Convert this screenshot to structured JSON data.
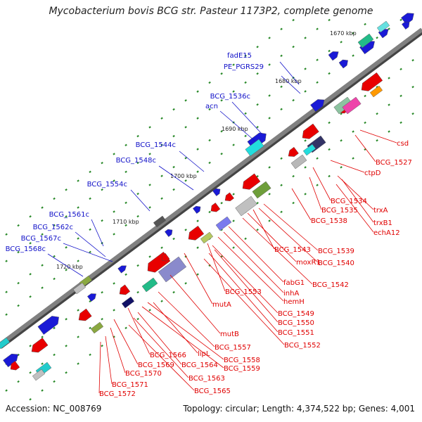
{
  "title": "Mycobacterium bovis BCG str. Pasteur 1173P2, complete genome",
  "accession": "Accession: NC_008769",
  "topology": "Topology: circular; Length: 4,374,522 bp; Genes: 4,001",
  "colors": {
    "forward_label": "#1010c8",
    "reverse_label": "#e00000",
    "backbone": "#808080",
    "tick": "#2a8a2a"
  },
  "scale_labels": [
    "1670 kbp",
    "1680 kbp",
    "1690 kbp",
    "1700 kbp",
    "1710 kbp",
    "1720 kbp"
  ],
  "forward_labels": [
    "fadE15",
    "PE_PGRS29",
    "BCG_1536c",
    "acn",
    "BCG_1544c",
    "BCG_1548c",
    "BCG_1554c",
    "BCG_1561c",
    "BCG_1562c",
    "BCG_1567c",
    "BCG_1568c"
  ],
  "reverse_labels": [
    "csd",
    "BCG_1527",
    "ctpD",
    "BCG_1534",
    "trxA",
    "BCG_1535",
    "trxB1",
    "echA12",
    "BCG_1538",
    "BCG_1539",
    "BCG_1540",
    "BCG_1543",
    "moxR1",
    "BCG_1542",
    "fabG1",
    "inhA",
    "hemH",
    "BCG_1553",
    "mutA",
    "BCG_1549",
    "BCG_1550",
    "BCG_1551",
    "BCG_1552",
    "mutB",
    "BCG_1557",
    "lipL",
    "BCG_1558",
    "BCG_1559",
    "BCG_1566",
    "BCG_1564",
    "BCG_1569",
    "BCG_1563",
    "BCG_1570",
    "BCG_1565",
    "BCG_1571",
    "BCG_1572"
  ]
}
